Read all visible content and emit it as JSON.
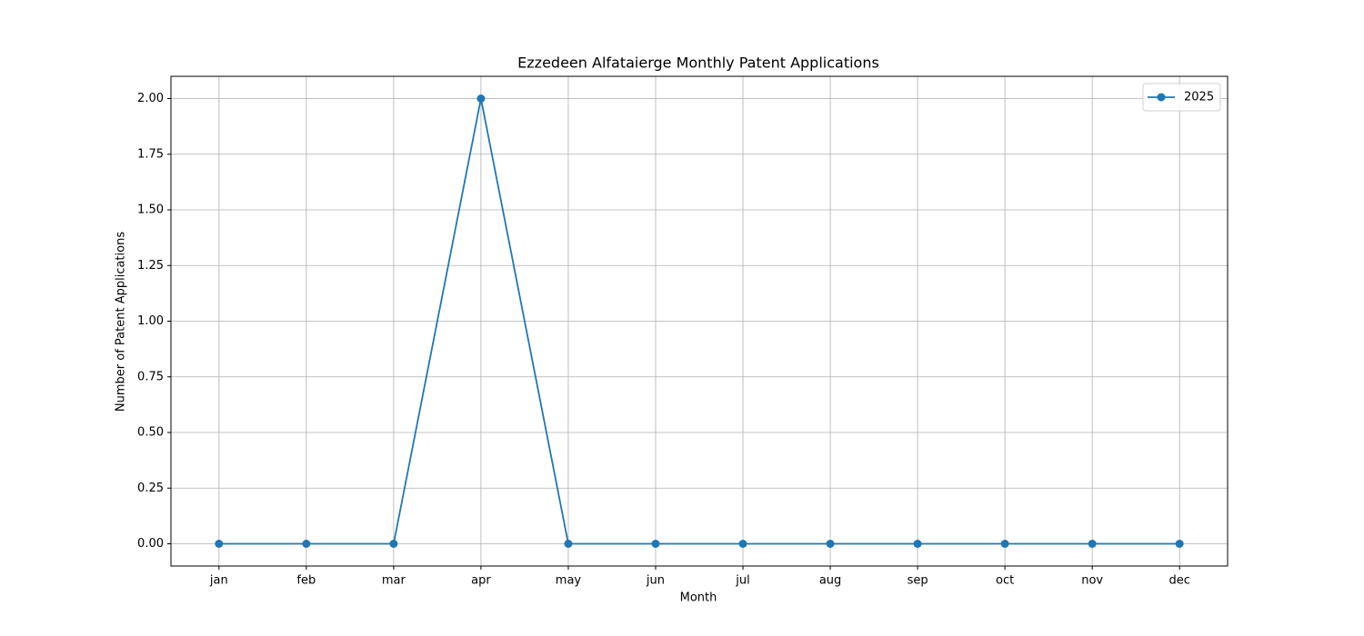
{
  "chart_data": {
    "type": "line",
    "title": "Ezzedeen Alfataierge Monthly Patent Applications",
    "x_label": "Month",
    "y_label": "Number of Patent Applications",
    "categories": [
      "jan",
      "feb",
      "mar",
      "apr",
      "may",
      "jun",
      "jul",
      "aug",
      "sep",
      "oct",
      "nov",
      "dec"
    ],
    "series": [
      {
        "name": "2025",
        "color": "#1f77b4",
        "values": [
          0,
          0,
          0,
          2,
          0,
          0,
          0,
          0,
          0,
          0,
          0,
          0
        ]
      }
    ],
    "ylim": [
      -0.1,
      2.1
    ],
    "yticks": [
      {
        "value": 0,
        "label": "0.00"
      },
      {
        "value": 0.25,
        "label": "0.25"
      },
      {
        "value": 0.5,
        "label": "0.50"
      },
      {
        "value": 0.75,
        "label": "0.75"
      },
      {
        "value": 1,
        "label": "1.00"
      },
      {
        "value": 1.25,
        "label": "1.25"
      },
      {
        "value": 1.5,
        "label": "1.50"
      },
      {
        "value": 1.75,
        "label": "1.75"
      },
      {
        "value": 2,
        "label": "2.00"
      }
    ],
    "grid": true,
    "legend": "upper right"
  }
}
